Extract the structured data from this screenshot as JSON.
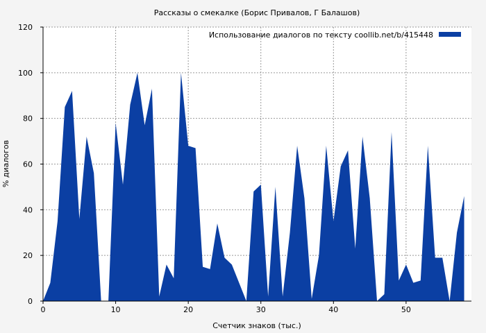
{
  "chart_data": {
    "type": "area",
    "title": "Рассказы о смекалке (Борис Привалов, Г Балашов)",
    "xlabel": "Счетчик знаков (тыс.)",
    "ylabel": "% диалогов",
    "xlim": [
      0,
      59
    ],
    "ylim": [
      0,
      120
    ],
    "x_ticks": [
      0,
      10,
      20,
      30,
      40,
      50
    ],
    "y_ticks": [
      0,
      20,
      40,
      60,
      80,
      100,
      120
    ],
    "grid": true,
    "legend_position": "top-right",
    "series": [
      {
        "name": "Использование диалогов по тексту  coollib.net/b/415448",
        "color": "#0b3fa3",
        "x": [
          0,
          1,
          2,
          3,
          4,
          5,
          6,
          7,
          8,
          9,
          10,
          11,
          12,
          13,
          14,
          15,
          16,
          17,
          18,
          19,
          20,
          21,
          22,
          23,
          24,
          25,
          26,
          27,
          28,
          29,
          30,
          31,
          32,
          33,
          34,
          35,
          36,
          37,
          38,
          39,
          40,
          41,
          42,
          43,
          44,
          45,
          46,
          47,
          48,
          49,
          50,
          51,
          52,
          53,
          54,
          55,
          56,
          57,
          58
        ],
        "values": [
          0,
          8,
          35,
          85,
          92,
          36,
          72,
          56,
          0,
          0,
          78,
          51,
          86,
          100,
          77,
          93,
          2,
          16,
          10,
          100,
          68,
          67,
          15,
          14,
          34,
          19,
          16,
          8,
          0,
          48,
          51,
          2,
          50,
          2,
          30,
          68,
          45,
          1,
          20,
          68,
          35,
          59,
          66,
          23,
          72,
          45,
          0,
          3,
          74,
          9,
          16,
          8,
          9,
          68,
          19,
          19,
          0,
          30,
          46
        ]
      }
    ]
  }
}
